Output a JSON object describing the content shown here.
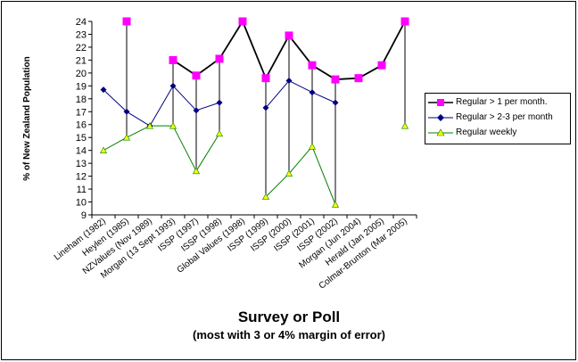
{
  "chart_data": {
    "type": "line",
    "title": "",
    "xlabel": "Survey or Poll",
    "xlabel_note": "(most with 3 or 4% margin of error)",
    "ylabel": "% of New Zealand Population",
    "ylim": [
      9,
      24
    ],
    "yticks": [
      9,
      10,
      11,
      12,
      13,
      14,
      15,
      16,
      17,
      18,
      19,
      20,
      21,
      22,
      23,
      24
    ],
    "grid": false,
    "legend_position": "right",
    "categories": [
      "Lineham (1982)",
      "Heylen (1985)",
      "NZValues (Nov 1989)",
      "Morgan (13 Sept 1993)",
      "ISSP (1997)",
      "ISSP (1998)",
      "Global Values (1998)",
      "ISSP (1999)",
      "ISSP (2000)",
      "ISSP (2001)",
      "ISSP (2002)",
      "Morgan (Jun 2004)",
      "Herald (Jan 2005)",
      "Colmar-Brunton (Mar 2005)"
    ],
    "series": [
      {
        "name": "Regular > 1 per month.",
        "color": "#000000",
        "marker": "square",
        "marker_color": "#ff00ff",
        "values": [
          null,
          24,
          null,
          21,
          19.8,
          21.1,
          24,
          19.6,
          22.9,
          20.6,
          19.5,
          19.6,
          20.6,
          24
        ]
      },
      {
        "name": "Regular > 2-3 per month",
        "color": "#000080",
        "marker": "diamond",
        "marker_color": "#000080",
        "values": [
          18.7,
          17,
          15.9,
          19,
          17.1,
          17.7,
          null,
          17.3,
          19.4,
          18.5,
          17.7,
          null,
          null,
          null
        ]
      },
      {
        "name": "Regular weekly",
        "color": "#008000",
        "marker": "triangle",
        "marker_color": "#ffff00",
        "values": [
          14,
          15,
          15.9,
          15.9,
          12.4,
          15.3,
          null,
          10.4,
          12.2,
          14.3,
          9.8,
          null,
          null,
          15.9
        ]
      }
    ]
  }
}
